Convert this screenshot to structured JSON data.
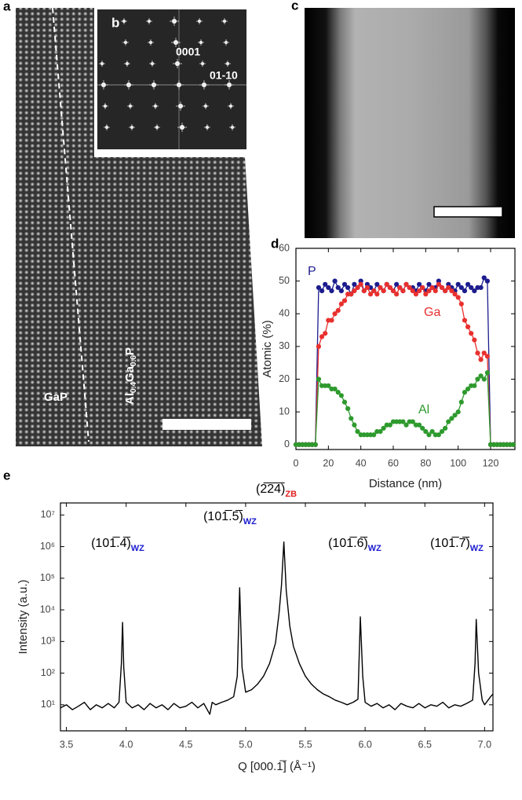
{
  "figure": {
    "panel_labels": [
      "a",
      "b",
      "c",
      "d",
      "e"
    ],
    "image_labels": {
      "fft_spot_1": "0001",
      "fft_spot_2": "01-10",
      "left_region": "GaP",
      "right_region": [
        "Al",
        "0.4",
        "Ga",
        "0.6",
        "P"
      ]
    }
  },
  "chart_data": [
    {
      "type": "line",
      "x_label": "Distance (nm)",
      "y_label": "Atomic (%)",
      "markers": true,
      "xlim": [
        0,
        135
      ],
      "ylim": [
        -1.5,
        60
      ],
      "xticks": [
        0,
        20,
        40,
        60,
        80,
        100,
        120
      ],
      "yticks": [
        0,
        10,
        20,
        30,
        40,
        50,
        60
      ],
      "x": [
        0,
        2,
        4,
        6,
        8,
        10,
        12,
        14,
        16,
        18,
        20,
        22,
        24,
        26,
        28,
        30,
        32,
        34,
        36,
        38,
        40,
        42,
        44,
        46,
        48,
        50,
        52,
        54,
        56,
        58,
        60,
        62,
        64,
        66,
        68,
        70,
        72,
        74,
        76,
        78,
        80,
        82,
        84,
        86,
        88,
        90,
        92,
        94,
        96,
        98,
        100,
        102,
        104,
        106,
        108,
        110,
        112,
        114,
        116,
        118,
        120,
        122,
        124,
        126,
        128,
        130,
        132,
        134
      ],
      "series": [
        {
          "name": "P",
          "color": "#1c1c8e",
          "values": [
            0,
            0,
            0,
            0,
            0,
            0,
            0,
            48,
            47,
            49,
            48,
            47,
            50,
            48,
            47,
            49,
            48,
            46,
            49,
            48,
            50,
            47,
            49,
            48,
            47,
            49,
            48,
            47,
            49,
            48,
            47,
            49,
            48,
            47,
            49,
            48,
            48,
            47,
            49,
            48,
            47,
            49,
            48,
            48,
            50,
            48,
            47,
            49,
            48,
            47,
            49,
            48,
            47,
            49,
            48,
            47,
            48,
            48,
            51,
            50,
            0,
            0,
            0,
            0,
            0,
            0,
            0,
            0
          ]
        },
        {
          "name": "Ga",
          "color": "#e8302e",
          "values": [
            0,
            0,
            0,
            0,
            0,
            0,
            0,
            30,
            33,
            34,
            38,
            38,
            40,
            41,
            43,
            44,
            46,
            46,
            47,
            48,
            49,
            47,
            48,
            46,
            47,
            46,
            48,
            47,
            49,
            48,
            47,
            46,
            48,
            47,
            49,
            48,
            47,
            46,
            47,
            48,
            46,
            47,
            48,
            47,
            49,
            48,
            47,
            48,
            47,
            46,
            45,
            43,
            38,
            36,
            34,
            32,
            28,
            26,
            28,
            27,
            0,
            0,
            0,
            0,
            0,
            0,
            0,
            0
          ]
        },
        {
          "name": "Al",
          "color": "#2e9a2e",
          "values": [
            0,
            0,
            0,
            0,
            0,
            0,
            0,
            20,
            18,
            18,
            18,
            17,
            17,
            16,
            15,
            13,
            11,
            8,
            6,
            4,
            3,
            3,
            3,
            3,
            3,
            4,
            4,
            5,
            6,
            6,
            7,
            7,
            7,
            7,
            6,
            7,
            7,
            6,
            6,
            5,
            4,
            3,
            4,
            3,
            3,
            4,
            5,
            7,
            8,
            9,
            10,
            13,
            16,
            17,
            18,
            18,
            20,
            21,
            20,
            22,
            0,
            0,
            0,
            0,
            0,
            0,
            0,
            0
          ]
        }
      ]
    },
    {
      "type": "line",
      "x_label": "Q [000.1̅] (Å⁻¹)",
      "y_label": "Intensity (a.u.)",
      "yscale": "log",
      "xlim": [
        3.45,
        7.07
      ],
      "ylim": [
        1.5,
        24000000
      ],
      "xticks": [
        3.5,
        {
          "value": 4,
          "label": "4.0"
        },
        4.5,
        {
          "value": 5,
          "label": "5.0"
        },
        5.5,
        {
          "value": 6,
          "label": "6.0"
        },
        6.5,
        {
          "value": 7,
          "label": "7.0"
        }
      ],
      "yticks": [
        {
          "value": 10,
          "label": "10¹"
        },
        {
          "value": 100,
          "label": "10²"
        },
        {
          "value": 1000,
          "label": "10³"
        },
        {
          "value": 10000,
          "label": "10⁴"
        },
        {
          "value": 100000,
          "label": "10⁵"
        },
        {
          "value": 1000000,
          "label": "10⁶"
        },
        {
          "value": 10000000,
          "label": "10⁷"
        }
      ],
      "x": [
        3.45,
        3.5,
        3.55,
        3.6,
        3.65,
        3.7,
        3.75,
        3.8,
        3.85,
        3.9,
        3.94,
        3.96,
        3.97,
        3.98,
        4.0,
        4.05,
        4.1,
        4.15,
        4.2,
        4.25,
        4.3,
        4.35,
        4.4,
        4.45,
        4.5,
        4.55,
        4.6,
        4.65,
        4.7,
        4.72,
        4.75,
        4.8,
        4.85,
        4.9,
        4.93,
        4.95,
        4.97,
        5.0,
        5.05,
        5.1,
        5.15,
        5.2,
        5.25,
        5.28,
        5.3,
        5.32,
        5.34,
        5.37,
        5.4,
        5.45,
        5.5,
        5.55,
        5.6,
        5.65,
        5.7,
        5.75,
        5.8,
        5.85,
        5.9,
        5.94,
        5.96,
        5.98,
        6.0,
        6.05,
        6.1,
        6.15,
        6.2,
        6.25,
        6.3,
        6.35,
        6.4,
        6.45,
        6.5,
        6.55,
        6.6,
        6.65,
        6.7,
        6.75,
        6.8,
        6.85,
        6.9,
        6.92,
        6.93,
        6.95,
        6.98,
        7.0,
        7.05,
        7.07
      ],
      "series": [
        {
          "color": "#000000",
          "values": [
            8,
            10,
            7,
            9,
            12,
            7,
            10,
            8,
            11,
            8,
            12,
            200,
            4000,
            150,
            12,
            8,
            10,
            7,
            11,
            8,
            10,
            7,
            11,
            8,
            9,
            12,
            8,
            11,
            5,
            12,
            10,
            12,
            14,
            18,
            80,
            50000,
            150,
            25,
            30,
            45,
            80,
            200,
            900,
            8000,
            60000,
            1400000,
            40000,
            3000,
            700,
            200,
            80,
            45,
            30,
            22,
            18,
            14,
            12,
            10,
            12,
            15,
            6000,
            80,
            12,
            9,
            11,
            8,
            10,
            7,
            11,
            9,
            8,
            11,
            8,
            10,
            9,
            12,
            8,
            10,
            9,
            11,
            14,
            200,
            5000,
            100,
            14,
            10,
            18,
            22
          ]
        }
      ],
      "annotations": [
        {
          "text": "(101̅.4̅)",
          "sub": "WZ",
          "sub_color": "#1a1ad0"
        },
        {
          "text": "(101̅.5̅)",
          "sub": "WZ",
          "sub_color": "#1a1ad0"
        },
        {
          "text": "(2̅2̅4̅)",
          "sub": "ZB",
          "sub_color": "#e02020"
        },
        {
          "text": "(101̅.6̅)",
          "sub": "WZ",
          "sub_color": "#1a1ad0"
        },
        {
          "text": "(101̅.7̅)",
          "sub": "WZ",
          "sub_color": "#1a1ad0"
        }
      ]
    }
  ]
}
